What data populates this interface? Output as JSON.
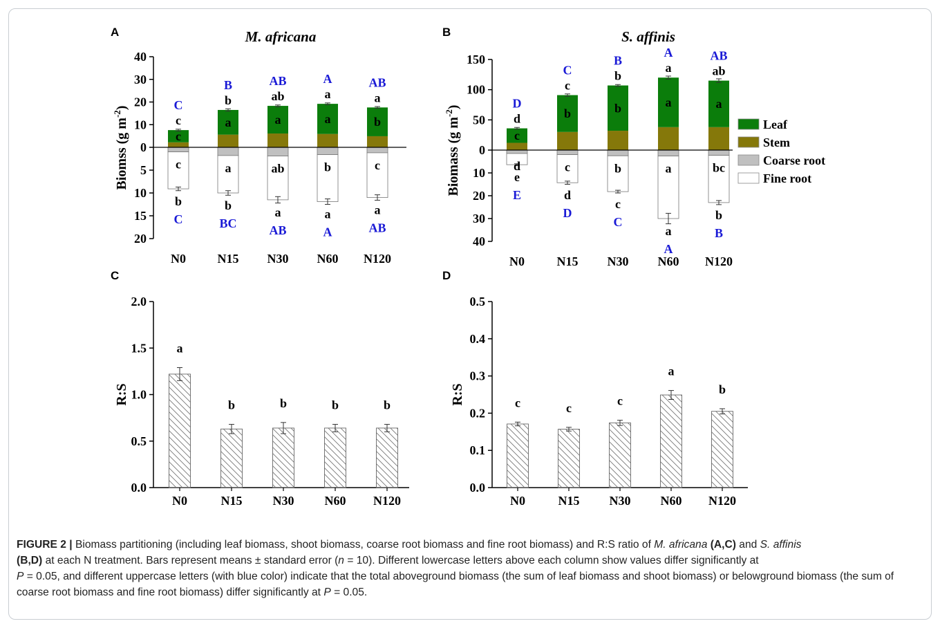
{
  "panel_labels": [
    "A",
    "B",
    "C",
    "D"
  ],
  "colors": {
    "leaf": "#0b7d0b",
    "stem": "#85780a",
    "coarse": "#c0c0c0",
    "fine": "#ffffff",
    "upper_letter": "#1a1ad6"
  },
  "legend": {
    "leaf": "Leaf",
    "stem": "Stem",
    "coarse": "Coarse root",
    "fine": "Fine root"
  },
  "chart_data": [
    {
      "id": "A",
      "type": "bar",
      "stacked": true,
      "title": "M. africana",
      "ylabel_main": "Biomss (g m",
      "ylabel_sup": "-2",
      "ylabel_end": ")",
      "categories": [
        "N0",
        "N15",
        "N30",
        "N60",
        "N120"
      ],
      "ylim_above": [
        0,
        40
      ],
      "ylim_below": [
        0,
        20
      ],
      "yticks_above": [
        "0",
        "10",
        "20",
        "30",
        "40"
      ],
      "yticks_below": [
        "5",
        "10",
        "15",
        "20"
      ],
      "series": [
        {
          "name": "Leaf",
          "values": [
            5.4,
            10.9,
            12.2,
            13.3,
            12.7
          ]
        },
        {
          "name": "Stem",
          "values": [
            2.2,
            5.6,
            6.1,
            5.9,
            4.9
          ]
        },
        {
          "name": "Coarse root",
          "values": [
            1.0,
            1.8,
            1.9,
            1.6,
            1.2
          ]
        },
        {
          "name": "Fine root",
          "values": [
            8.1,
            8.2,
            9.6,
            10.3,
            9.8
          ]
        }
      ],
      "total_above": [
        7.6,
        16.5,
        18.3,
        19.2,
        17.6
      ],
      "total_below": [
        9.1,
        10.0,
        11.5,
        11.9,
        11.0
      ],
      "err_above": [
        0.4,
        0.5,
        0.4,
        0.4,
        0.4
      ],
      "err_below": [
        0.4,
        0.5,
        0.7,
        0.6,
        0.6
      ],
      "letters": {
        "leaf": [
          "c",
          "b",
          "ab",
          "a",
          "a"
        ],
        "stem": [
          "c",
          "a",
          "a",
          "a",
          "b"
        ],
        "coarse": [
          "c",
          "a",
          "ab",
          "b",
          "c"
        ],
        "fine": [
          "b",
          "b",
          "a",
          "a",
          "a"
        ],
        "upper_above": [
          "C",
          "B",
          "AB",
          "A",
          "AB"
        ],
        "upper_below": [
          "C",
          "BC",
          "AB",
          "A",
          "AB"
        ]
      }
    },
    {
      "id": "B",
      "type": "bar",
      "stacked": true,
      "title": "S. affinis",
      "ylabel_main": "Biomass (g m",
      "ylabel_sup": "-2",
      "ylabel_end": ")",
      "categories": [
        "N0",
        "N15",
        "N30",
        "N60",
        "N120"
      ],
      "ylim_above": [
        0,
        150
      ],
      "ylim_below": [
        0,
        40
      ],
      "yticks_above": [
        "0",
        "50",
        "100",
        "150"
      ],
      "yticks_below": [
        "10",
        "20",
        "30",
        "40"
      ],
      "series": [
        {
          "name": "Leaf",
          "values": [
            24,
            61,
            75,
            82,
            77
          ]
        },
        {
          "name": "Stem",
          "values": [
            12,
            30,
            32,
            38,
            38
          ]
        },
        {
          "name": "Coarse root",
          "values": [
            1.5,
            2.0,
            2.5,
            2.6,
            2.3
          ]
        },
        {
          "name": "Fine root",
          "values": [
            4.9,
            12.3,
            15.7,
            27.4,
            20.7
          ]
        }
      ],
      "total_above": [
        36,
        91,
        107,
        120,
        115
      ],
      "total_below": [
        6.4,
        14.3,
        18.2,
        30.0,
        23.0
      ],
      "err_above": [
        1.5,
        2.0,
        1.5,
        2.5,
        3.0
      ],
      "err_below": [
        0.4,
        0.7,
        0.6,
        2.3,
        0.9
      ],
      "letters": {
        "leaf": [
          "d",
          "c",
          "b",
          "a",
          "ab"
        ],
        "stem": [
          "c",
          "b",
          "b",
          "a",
          "a"
        ],
        "coarse": [
          "d",
          "c",
          "b",
          "a",
          "bc"
        ],
        "fine": [
          "e",
          "d",
          "c",
          "a",
          "b"
        ],
        "upper_above": [
          "D",
          "C",
          "B",
          "A",
          "AB"
        ],
        "upper_below": [
          "E",
          "D",
          "C",
          "A",
          "B"
        ]
      }
    },
    {
      "id": "C",
      "type": "bar",
      "ylabel": "R:S",
      "categories": [
        "N0",
        "N15",
        "N30",
        "N60",
        "N120"
      ],
      "values": [
        1.22,
        0.63,
        0.64,
        0.64,
        0.64
      ],
      "errors": [
        0.07,
        0.05,
        0.06,
        0.04,
        0.04
      ],
      "letters": [
        "a",
        "b",
        "b",
        "b",
        "b"
      ],
      "ylim": [
        0,
        2.0
      ],
      "yticks": [
        "0.0",
        "0.5",
        "1.0",
        "1.5",
        "2.0"
      ]
    },
    {
      "id": "D",
      "type": "bar",
      "ylabel": "R:S",
      "categories": [
        "N0",
        "N15",
        "N30",
        "N60",
        "N120"
      ],
      "values": [
        0.171,
        0.157,
        0.174,
        0.249,
        0.205
      ],
      "errors": [
        0.005,
        0.005,
        0.007,
        0.012,
        0.007
      ],
      "letters": [
        "c",
        "c",
        "c",
        "a",
        "b"
      ],
      "ylim": [
        0,
        0.5
      ],
      "yticks": [
        "0.0",
        "0.1",
        "0.2",
        "0.3",
        "0.4",
        "0.5"
      ]
    }
  ],
  "caption": {
    "fig_label": "FIGURE 2 |",
    "t1": " Biomass partitioning (including leaf biomass, shoot biomass, coarse root biomass and fine root biomass) and R:S ratio of ",
    "sp1": "M. africana",
    "t2": " ",
    "ref1": "(A,C)",
    "t3": " and ",
    "sp2": "S. affinis",
    "ref2": "(B,D)",
    "t4": " at each N treatment. Bars represent means ± standard error (",
    "n_var": "n",
    "t5": " = 10). Different lowercase letters above each column show values differ significantly at ",
    "p1": "P",
    "t6": " = 0.05, and different uppercase letters (with blue color) indicate that the total aboveground biomass (the sum of leaf biomass and shoot biomass) or belowground biomass (the sum of coarse root biomass and fine root biomass) differ significantly at ",
    "p2": "P",
    "t7": " = 0.05."
  }
}
